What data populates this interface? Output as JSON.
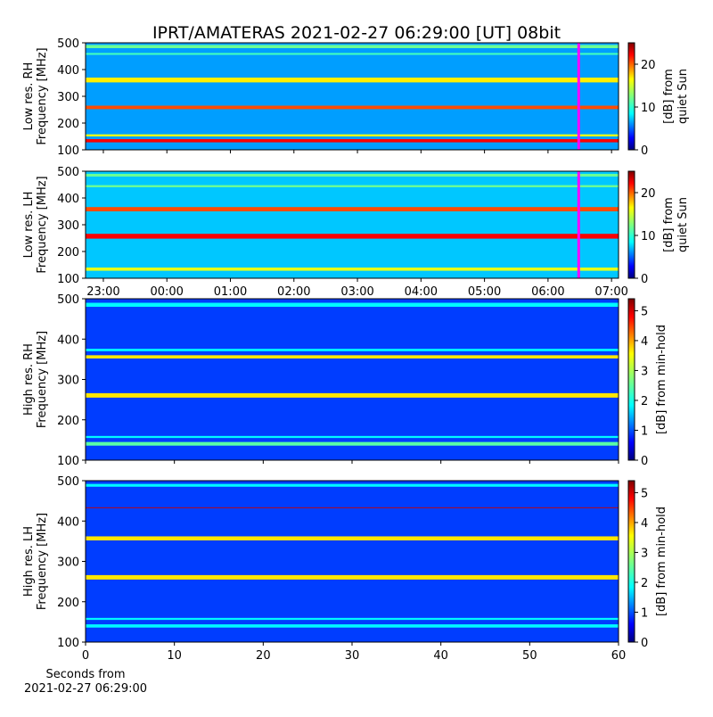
{
  "chart_data": [
    {
      "type": "heatmap",
      "title": "IPRT/AMATERAS 2021-02-27 06:29:00 [UT]   08bit",
      "ylabel": [
        "Low res. RH",
        "Frequency [MHz]"
      ],
      "ylim": [
        100,
        500
      ],
      "yticks": [
        100,
        200,
        300,
        400,
        500
      ],
      "xlim": [
        -1.28,
        7.11
      ],
      "xticks": [
        {
          "value": -1,
          "label": "23:00"
        },
        {
          "value": 0,
          "label": "00:00"
        },
        {
          "value": 1,
          "label": "01:00"
        },
        {
          "value": 2,
          "label": "02:00"
        },
        {
          "value": 3,
          "label": "03:00"
        },
        {
          "value": 4,
          "label": "04:00"
        },
        {
          "value": 5,
          "label": "05:00"
        },
        {
          "value": 6,
          "label": "06:00"
        },
        {
          "value": 7,
          "label": "07:00"
        }
      ],
      "show_xtick_labels": false,
      "clim": [
        0,
        25
      ],
      "cbticks": [
        0,
        10,
        20
      ],
      "cblabel": [
        "[dB] from",
        "quiet Sun"
      ],
      "background_level": 7,
      "bands": [
        {
          "y": [
            128,
            140
          ],
          "level": 22
        },
        {
          "y": [
            150,
            158
          ],
          "level": 15
        },
        {
          "y": [
            252,
            265
          ],
          "level": 20
        },
        {
          "y": [
            352,
            370
          ],
          "level": 16
        },
        {
          "y": [
            455,
            462
          ],
          "level": 11
        },
        {
          "y": [
            480,
            492
          ],
          "level": 12
        }
      ],
      "marker_x": 6.483,
      "marker_color": "#ff00ff"
    },
    {
      "type": "heatmap",
      "ylabel": [
        "Low res. LH",
        "Frequency [MHz]"
      ],
      "ylim": [
        100,
        500
      ],
      "yticks": [
        100,
        200,
        300,
        400,
        500
      ],
      "xlim": [
        -1.28,
        7.11
      ],
      "xticks": [
        {
          "value": -1,
          "label": "23:00"
        },
        {
          "value": 0,
          "label": "00:00"
        },
        {
          "value": 1,
          "label": "01:00"
        },
        {
          "value": 2,
          "label": "02:00"
        },
        {
          "value": 3,
          "label": "03:00"
        },
        {
          "value": 4,
          "label": "04:00"
        },
        {
          "value": 5,
          "label": "05:00"
        },
        {
          "value": 6,
          "label": "06:00"
        },
        {
          "value": 7,
          "label": "07:00"
        }
      ],
      "show_xtick_labels": true,
      "clim": [
        0,
        25
      ],
      "cbticks": [
        0,
        10,
        20
      ],
      "cblabel": [
        "[dB] from",
        "quiet Sun"
      ],
      "background_level": 8,
      "bands": [
        {
          "y": [
            128,
            140
          ],
          "level": 15
        },
        {
          "y": [
            248,
            266
          ],
          "level": 22
        },
        {
          "y": [
            350,
            366
          ],
          "level": 20
        },
        {
          "y": [
            440,
            448
          ],
          "level": 12
        },
        {
          "y": [
            480,
            490
          ],
          "level": 12
        }
      ],
      "marker_x": 6.483,
      "marker_color": "#ff00ff"
    },
    {
      "type": "heatmap",
      "ylabel": [
        "High res. RH",
        "Frequency [MHz]"
      ],
      "ylim": [
        100,
        500
      ],
      "yticks": [
        100,
        200,
        300,
        400,
        500
      ],
      "xlim": [
        0,
        60
      ],
      "xticks": [
        0,
        10,
        20,
        30,
        40,
        50,
        60
      ],
      "show_xtick_labels": false,
      "clim": [
        0,
        5.4
      ],
      "cbticks": [
        0,
        1,
        2,
        3,
        4,
        5
      ],
      "cblabel": [
        "[dB] from min-hold"
      ],
      "background_level": 1,
      "bands": [
        {
          "y": [
            136,
            145
          ],
          "level": 2.5
        },
        {
          "y": [
            155,
            160
          ],
          "level": 2
        },
        {
          "y": [
            255,
            266
          ],
          "level": 3.5
        },
        {
          "y": [
            352,
            360
          ],
          "level": 3.5
        },
        {
          "y": [
            370,
            376
          ],
          "level": 2
        },
        {
          "y": [
            480,
            490
          ],
          "level": 2
        }
      ]
    },
    {
      "type": "heatmap",
      "ylabel": [
        "High res. LH",
        "Frequency [MHz]"
      ],
      "ylim": [
        100,
        500
      ],
      "yticks": [
        100,
        200,
        300,
        400,
        500
      ],
      "xlim": [
        0,
        60
      ],
      "xticks": [
        0,
        10,
        20,
        30,
        40,
        50,
        60
      ],
      "show_xtick_labels": true,
      "xlabel": [
        "Seconds from",
        "2021-02-27 06:29:00"
      ],
      "clim": [
        0,
        5.4
      ],
      "cbticks": [
        0,
        1,
        2,
        3,
        4,
        5
      ],
      "cblabel": [
        "[dB] from min-hold"
      ],
      "background_level": 1,
      "bands": [
        {
          "y": [
            136,
            144
          ],
          "level": 2
        },
        {
          "y": [
            155,
            160
          ],
          "level": 2
        },
        {
          "y": [
            255,
            266
          ],
          "level": 3.5
        },
        {
          "y": [
            352,
            362
          ],
          "level": 3.5
        },
        {
          "y": [
            432,
            434
          ],
          "level": 5
        },
        {
          "y": [
            485,
            492
          ],
          "level": 2
        }
      ]
    }
  ]
}
